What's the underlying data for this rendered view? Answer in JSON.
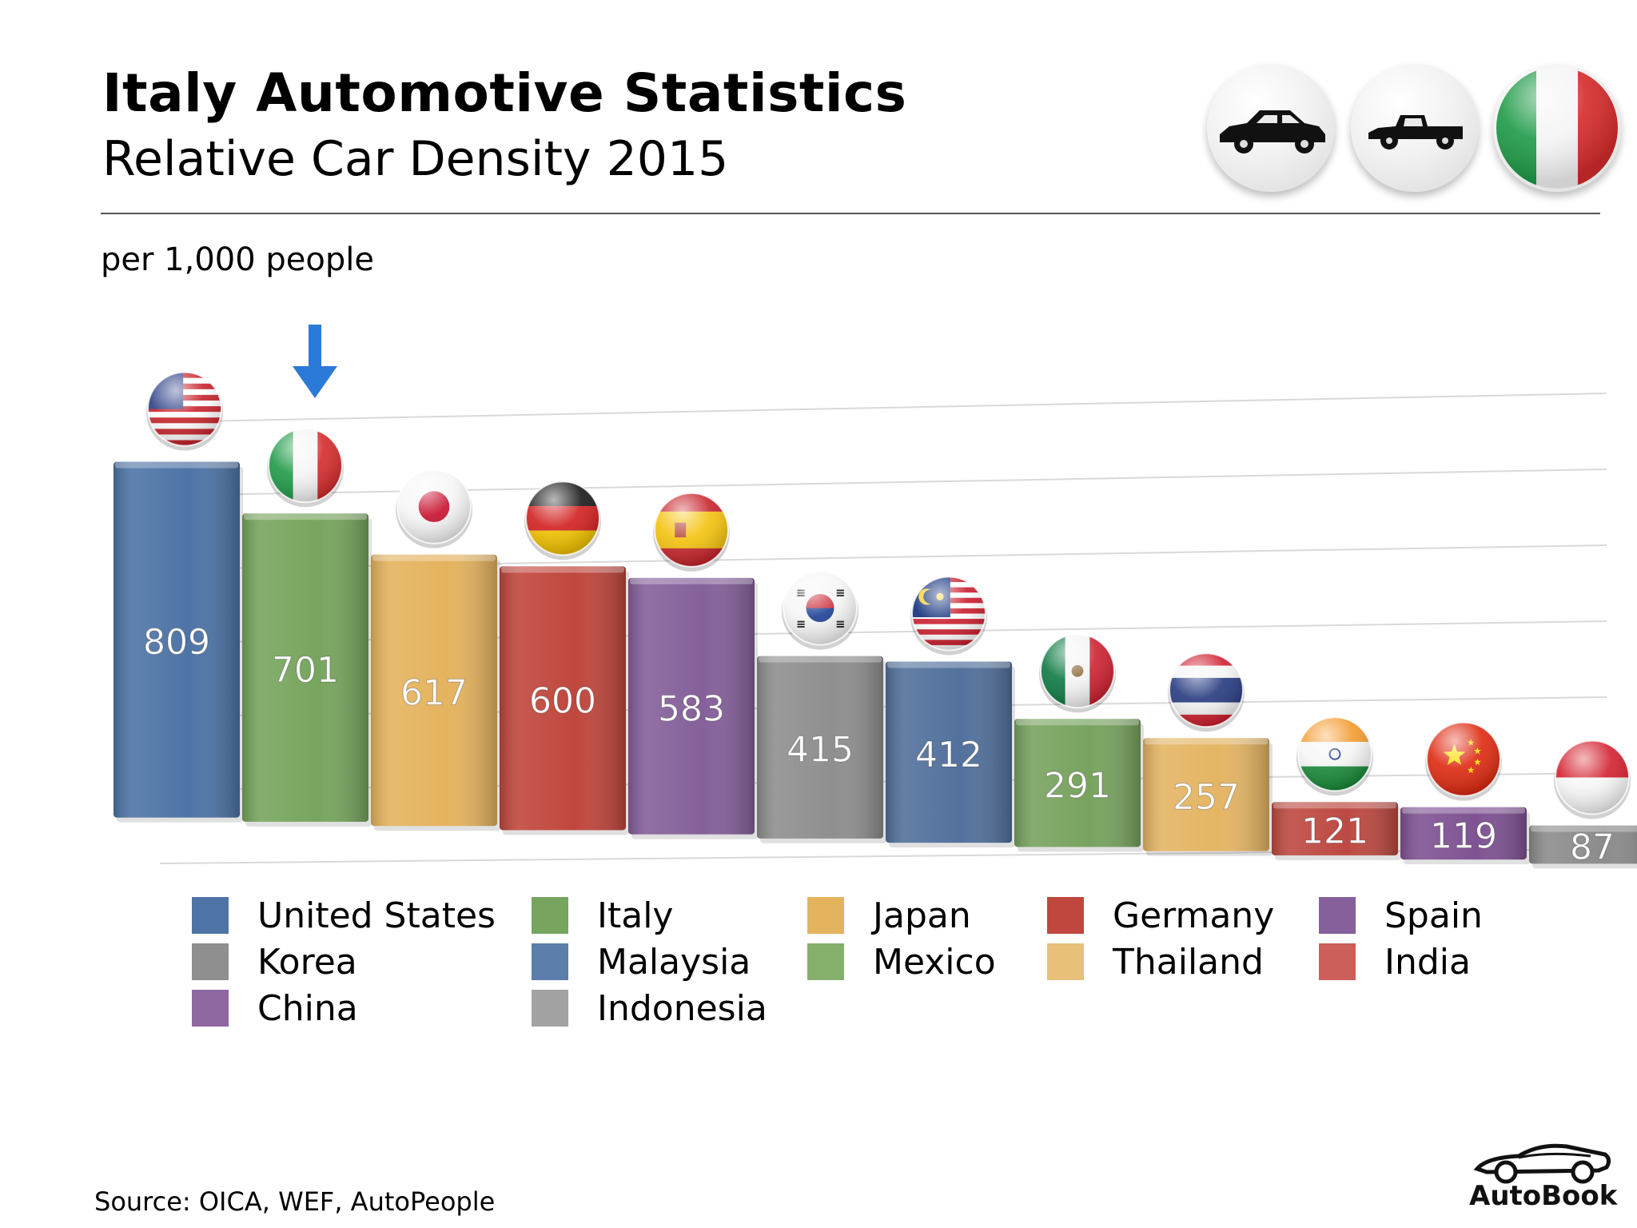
{
  "header": {
    "title": "Italy Automotive Statistics",
    "subtitle": "Relative Car Density 2015",
    "unit_note": "per 1,000 people"
  },
  "badges": [
    {
      "name": "car-icon"
    },
    {
      "name": "pickup-truck-icon"
    },
    {
      "name": "italy-flag-icon"
    }
  ],
  "chart_data": {
    "type": "bar",
    "title": "Relative Car Density 2015",
    "ylabel": "per 1,000 people",
    "categories": [
      "United States",
      "Italy",
      "Japan",
      "Germany",
      "Spain",
      "Korea",
      "Malaysia",
      "Mexico",
      "Thailand",
      "India",
      "China",
      "Indonesia"
    ],
    "values": [
      809,
      701,
      617,
      600,
      583,
      415,
      412,
      291,
      257,
      121,
      119,
      87
    ],
    "data_labels": [
      "809",
      "701",
      "617",
      "600",
      "583",
      "415",
      "412",
      "291",
      "257",
      "121",
      "119",
      "87"
    ],
    "colors": [
      "#4e74a6",
      "#77a55e",
      "#e4b35e",
      "#c0473d",
      "#85609a",
      "#8f8f8f",
      "#52719c",
      "#78a35f",
      "#e4b564",
      "#bd4a42",
      "#7f5393",
      "#8c8c8c"
    ],
    "flags": [
      "us-flag-icon",
      "italy-flag-icon",
      "japan-flag-icon",
      "germany-flag-icon",
      "spain-flag-icon",
      "korea-flag-icon",
      "malaysia-flag-icon",
      "mexico-flag-icon",
      "thailand-flag-icon",
      "india-flag-icon",
      "china-flag-icon",
      "indonesia-flag-icon"
    ],
    "highlight": "Italy",
    "grid": true,
    "legend": "bottom"
  },
  "legend": [
    {
      "label": "United States",
      "color": "#4e74a6"
    },
    {
      "label": "Italy",
      "color": "#77a55e"
    },
    {
      "label": "Japan",
      "color": "#e4b35e"
    },
    {
      "label": "Germany",
      "color": "#c0473d"
    },
    {
      "label": "Spain",
      "color": "#85609a"
    },
    {
      "label": "Korea",
      "color": "#8f8f8f"
    },
    {
      "label": "Malaysia",
      "color": "#5b7eaa"
    },
    {
      "label": "Mexico",
      "color": "#84b06c"
    },
    {
      "label": "Thailand",
      "color": "#e8c07a"
    },
    {
      "label": "India",
      "color": "#cc5f59"
    },
    {
      "label": "China",
      "color": "#8f67a1"
    },
    {
      "label": "Indonesia",
      "color": "#a2a2a2"
    }
  ],
  "footer": {
    "source": "Source:  OICA, WEF, AutoPeople",
    "brand": "AutoBook"
  }
}
